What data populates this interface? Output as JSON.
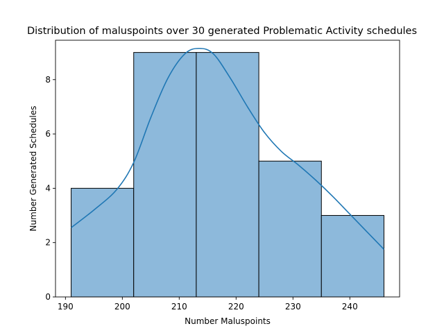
{
  "chart_data": {
    "type": "histogram",
    "title": "Distribution of maluspoints over 30 generated Problematic Activity schedules",
    "xlabel": "Number Maluspoints",
    "ylabel": "Number Generated Schedules",
    "bin_edges": [
      191,
      202,
      213,
      224,
      235,
      246
    ],
    "counts": [
      4,
      9,
      9,
      5,
      3
    ],
    "xlim": [
      188.25,
      248.75
    ],
    "ylim": [
      0,
      9.45
    ],
    "xticks": [
      190,
      200,
      210,
      220,
      230,
      240
    ],
    "yticks": [
      0,
      2,
      4,
      6,
      8
    ],
    "kde": {
      "x": [
        191,
        195,
        199,
        202,
        205,
        208,
        211,
        213.5,
        216,
        219,
        222,
        225,
        228,
        231,
        234,
        237,
        240,
        243,
        246
      ],
      "y": [
        2.55,
        3.2,
        3.95,
        4.95,
        6.6,
        8.05,
        8.95,
        9.15,
        8.95,
        8.05,
        7.0,
        6.05,
        5.35,
        4.85,
        4.3,
        3.7,
        3.05,
        2.4,
        1.75
      ]
    },
    "colors": {
      "bar_fill": "#8db9db",
      "bar_edge": "#000000",
      "kde_line": "#1f77b4"
    },
    "grid": false,
    "legend": "none"
  }
}
